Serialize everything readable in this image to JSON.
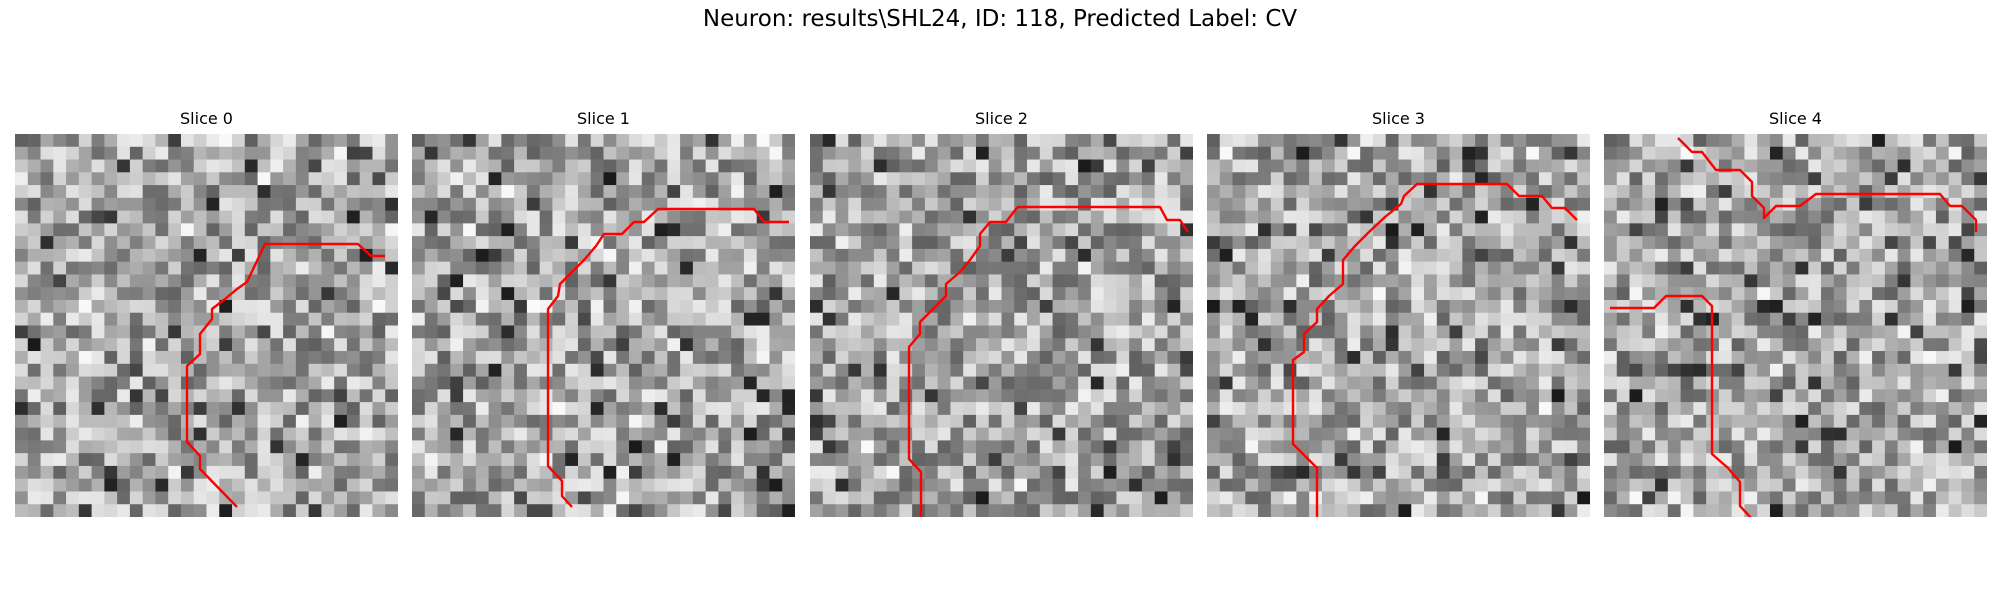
{
  "figure": {
    "title": "Neuron: results\\SHL24, ID: 118, Predicted Label: CV"
  },
  "panels": [
    {
      "title": "Slice 0"
    },
    {
      "title": "Slice 1"
    },
    {
      "title": "Slice 2"
    },
    {
      "title": "Slice 3"
    },
    {
      "title": "Slice 4"
    }
  ],
  "colors": {
    "background": "#ffffff",
    "trace": "#ff0000",
    "image_colormap": "grayscale"
  }
}
